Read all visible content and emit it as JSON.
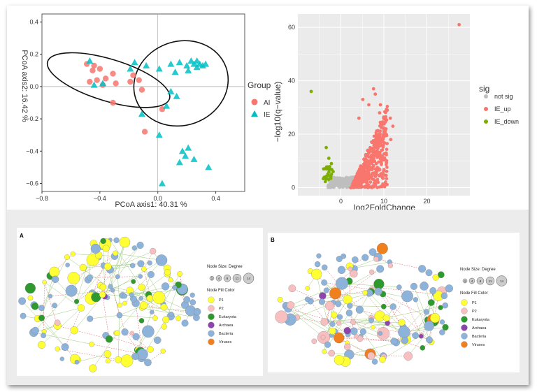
{
  "chart_data": [
    {
      "type": "scatter",
      "xlabel": "PCoA axis1:  40.31 %",
      "ylabel": "PCoA axis2:  16.42 %",
      "xlim": [
        -0.8,
        0.6
      ],
      "ylim": [
        -0.65,
        0.45
      ],
      "x_ticks": [
        "−0.8",
        "−0.4",
        "0.0",
        "0.4"
      ],
      "y_ticks": [
        "0.4",
        "0.2",
        "0.0",
        "−0.2",
        "−0.4",
        "−0.6"
      ],
      "legend": {
        "title": "Group",
        "entries": [
          "AI",
          "IE"
        ],
        "placement": "right"
      },
      "series": [
        {
          "name": "AI",
          "marker": "circle",
          "color": "#F8766D",
          "points": [
            [
              -0.49,
              0.14
            ],
            [
              -0.45,
              0.1
            ],
            [
              -0.47,
              0.03
            ],
            [
              -0.42,
              0.04
            ],
            [
              -0.4,
              0.11
            ],
            [
              -0.36,
              0.05
            ],
            [
              -0.31,
              0.08
            ],
            [
              -0.38,
              0.01
            ],
            [
              -0.29,
              0.02
            ],
            [
              -0.17,
              0.07
            ],
            [
              -0.13,
              0.04
            ],
            [
              -0.11,
              -0.02
            ],
            [
              -0.19,
              0.03
            ],
            [
              -0.31,
              -0.1
            ],
            [
              0.03,
              -0.14
            ],
            [
              -0.09,
              -0.28
            ],
            [
              -0.44,
              0.13
            ]
          ]
        },
        {
          "name": "IE",
          "marker": "triangle",
          "color": "#00BFC4",
          "points": [
            [
              -0.47,
              0.16
            ],
            [
              -0.44,
              0.01
            ],
            [
              -0.38,
              0.02
            ],
            [
              -0.16,
              0.15
            ],
            [
              -0.19,
              0.11
            ],
            [
              -0.08,
              0.13
            ],
            [
              0.01,
              0.11
            ],
            [
              0.09,
              0.14
            ],
            [
              0.12,
              0.09
            ],
            [
              0.15,
              0.15
            ],
            [
              0.2,
              0.13
            ],
            [
              0.23,
              0.16
            ],
            [
              0.25,
              0.14
            ],
            [
              0.27,
              0.12
            ],
            [
              0.29,
              0.14
            ],
            [
              0.31,
              0.13
            ],
            [
              0.33,
              0.14
            ],
            [
              0.27,
              0.16
            ],
            [
              0.21,
              0.1
            ],
            [
              0.09,
              -0.03
            ],
            [
              0.13,
              -0.06
            ],
            [
              0.06,
              -0.12
            ],
            [
              -0.11,
              -0.17
            ],
            [
              0.01,
              -0.3
            ],
            [
              0.17,
              -0.4
            ],
            [
              0.21,
              -0.38
            ],
            [
              0.15,
              -0.47
            ],
            [
              0.25,
              -0.45
            ],
            [
              0.35,
              -0.5
            ],
            [
              0.03,
              -0.6
            ],
            [
              0.19,
              -0.43
            ]
          ]
        }
      ],
      "ellipses": [
        {
          "group": "AI",
          "cx": -0.34,
          "cy": 0.04,
          "rx": 0.44,
          "ry": 0.13,
          "rotate_deg": 17
        },
        {
          "group": "IE",
          "cx": 0.16,
          "cy": 0.02,
          "rx": 0.33,
          "ry": 0.26,
          "rotate_deg": -20
        }
      ],
      "grid": false
    },
    {
      "type": "scatter",
      "xlabel": "log2FoldChange",
      "ylabel": "−log10(q−value)",
      "xlim": [
        -10,
        30
      ],
      "ylim": [
        -3,
        65
      ],
      "x_ticks": [
        "0",
        "10",
        "20"
      ],
      "y_ticks": [
        "0",
        "20",
        "40",
        "60"
      ],
      "legend": {
        "title": "sig",
        "entries": [
          "not sig",
          "IE_up",
          "IE_down"
        ],
        "placement": "right"
      },
      "colors": {
        "not sig": "#BEBEBE",
        "IE_up": "#F8766D",
        "IE_down": "#7CAE00"
      },
      "series": [
        {
          "name": "IE_up",
          "points": [
            [
              27.5,
              61
            ],
            [
              7.6,
              37
            ],
            [
              8.0,
              35
            ],
            [
              9.2,
              31
            ],
            [
              10.8,
              29
            ],
            [
              11.5,
              26
            ],
            [
              12.1,
              23
            ],
            [
              11.6,
              18
            ],
            [
              10.5,
              22
            ],
            [
              9.0,
              28
            ],
            [
              6.5,
              31
            ],
            [
              5.1,
              33
            ],
            [
              4.2,
              26
            ]
          ]
        },
        {
          "name": "IE_down",
          "points": [
            [
              -6.9,
              36
            ],
            [
              -3.4,
              15
            ],
            [
              -2.8,
              11
            ],
            [
              -2.2,
              9
            ],
            [
              -4.0,
              7
            ],
            [
              -1.8,
              6
            ],
            [
              -3.0,
              5
            ],
            [
              -2.4,
              4
            ]
          ]
        },
        {
          "name": "not sig",
          "points": [
            [
              -1.2,
              2
            ],
            [
              0.3,
              1
            ],
            [
              1.0,
              2
            ],
            [
              -0.5,
              3
            ],
            [
              2.0,
              1
            ]
          ]
        }
      ],
      "grid": true
    }
  ],
  "networks": [
    {
      "label": "A",
      "legend": {
        "size_title": "Node Size:  Degree",
        "size_values": [
          "1",
          "4",
          "8",
          "11",
          "14"
        ],
        "fill_title": "Node Fill Color",
        "entries": [
          {
            "name": "P1",
            "color": "#FFFF33"
          },
          {
            "name": "P2",
            "color": "#F7BFBF"
          },
          {
            "name": "Eukaryota",
            "color": "#2E9A2E"
          },
          {
            "name": "Archaea",
            "color": "#8E44AD"
          },
          {
            "name": "Bacteria",
            "color": "#8DB3DB"
          },
          {
            "name": "Viruses",
            "color": "#F07F1E"
          }
        ]
      }
    },
    {
      "label": "B",
      "legend": {
        "size_title": "Node Size:  Degree",
        "size_values": [
          "1",
          "4",
          "8",
          "11",
          "14"
        ],
        "fill_title": "Node Fill Color",
        "entries": [
          {
            "name": "P1",
            "color": "#FFFF33"
          },
          {
            "name": "P2",
            "color": "#F7BFBF"
          },
          {
            "name": "Eukaryota",
            "color": "#2E9A2E"
          },
          {
            "name": "Archaea",
            "color": "#8E44AD"
          },
          {
            "name": "Bacteria",
            "color": "#8DB3DB"
          },
          {
            "name": "Viruses",
            "color": "#F07F1E"
          }
        ]
      }
    }
  ]
}
